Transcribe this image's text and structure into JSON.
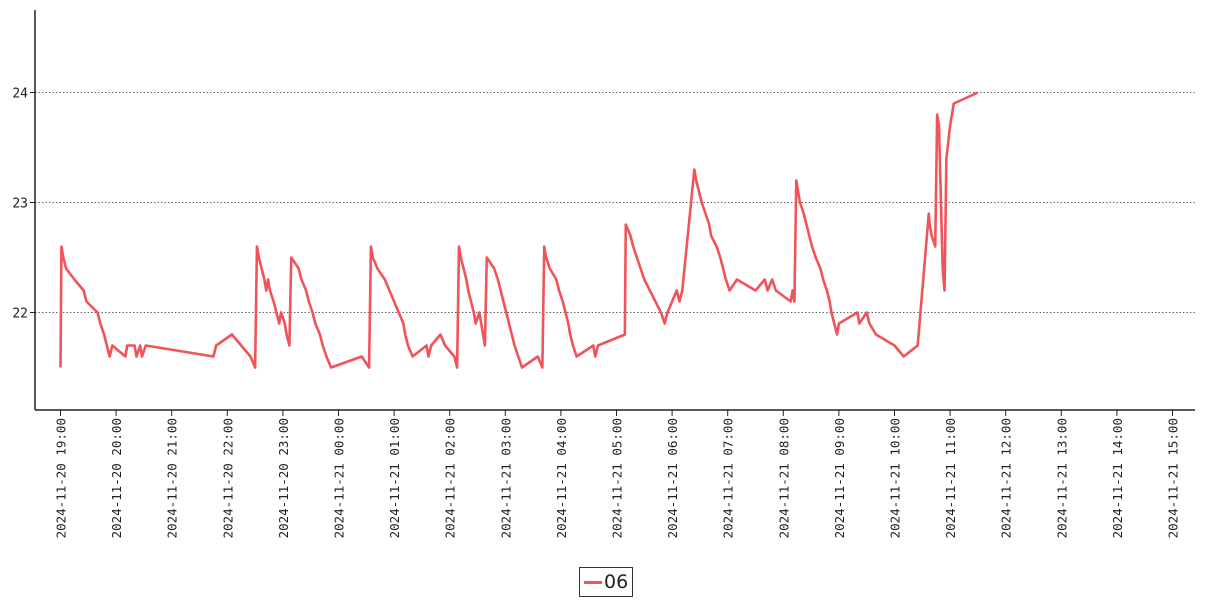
{
  "chart_data": {
    "type": "line",
    "title": "",
    "xlabel": "",
    "ylabel": "",
    "x_range": [
      "2024-11-20 18:55",
      "2024-11-21 15:20"
    ],
    "ylim": [
      21.1,
      24.75
    ],
    "y_ticks": [
      22,
      23,
      24
    ],
    "y_tick_labels": [
      "22",
      "23",
      "24"
    ],
    "x_ticks": [
      "2024-11-20 19:00",
      "2024-11-20 20:00",
      "2024-11-20 21:00",
      "2024-11-20 22:00",
      "2024-11-20 23:00",
      "2024-11-21 00:00",
      "2024-11-21 01:00",
      "2024-11-21 02:00",
      "2024-11-21 03:00",
      "2024-11-21 04:00",
      "2024-11-21 05:00",
      "2024-11-21 06:00",
      "2024-11-21 07:00",
      "2024-11-21 08:00",
      "2024-11-21 09:00",
      "2024-11-21 10:00",
      "2024-11-21 11:00",
      "2024-11-21 12:00",
      "2024-11-21 13:00",
      "2024-11-21 14:00",
      "2024-11-21 15:00"
    ],
    "x_tick_labels": [
      "2024-11-20 19:00",
      "2024-11-20 20:00",
      "2024-11-20 21:00",
      "2024-11-20 22:00",
      "2024-11-20 23:00",
      "2024-11-21 00:00",
      "2024-11-21 01:00",
      "2024-11-21 02:00",
      "2024-11-21 03:00",
      "2024-11-21 04:00",
      "2024-11-21 05:00",
      "2024-11-21 06:00",
      "2024-11-21 07:00",
      "2024-11-21 08:00",
      "2024-11-21 09:00",
      "2024-11-21 10:00",
      "2024-11-21 11:00",
      "2024-11-21 12:00",
      "2024-11-21 13:00",
      "2024-11-21 14:00",
      "2024-11-21 15:00"
    ],
    "grid": "horizontal dotted",
    "legend_position": "bottom-center",
    "series": [
      {
        "name": "06",
        "color": "#f0545a",
        "points": [
          [
            "2024-11-20 19:00",
            21.5
          ],
          [
            "2024-11-20 19:01",
            22.6
          ],
          [
            "2024-11-20 19:03",
            22.5
          ],
          [
            "2024-11-20 19:06",
            22.4
          ],
          [
            "2024-11-20 19:15",
            22.3
          ],
          [
            "2024-11-20 19:25",
            22.2
          ],
          [
            "2024-11-20 19:28",
            22.1
          ],
          [
            "2024-11-20 19:40",
            22.0
          ],
          [
            "2024-11-20 19:43",
            21.9
          ],
          [
            "2024-11-20 19:47",
            21.8
          ],
          [
            "2024-11-20 19:50",
            21.7
          ],
          [
            "2024-11-20 19:53",
            21.6
          ],
          [
            "2024-11-20 19:56",
            21.7
          ],
          [
            "2024-11-20 20:10",
            21.6
          ],
          [
            "2024-11-20 20:12",
            21.7
          ],
          [
            "2024-11-20 20:20",
            21.7
          ],
          [
            "2024-11-20 20:22",
            21.6
          ],
          [
            "2024-11-20 20:26",
            21.7
          ],
          [
            "2024-11-20 20:28",
            21.6
          ],
          [
            "2024-11-20 20:32",
            21.7
          ],
          [
            "2024-11-20 21:45",
            21.6
          ],
          [
            "2024-11-20 21:48",
            21.7
          ],
          [
            "2024-11-20 22:05",
            21.8
          ],
          [
            "2024-11-20 22:15",
            21.7
          ],
          [
            "2024-11-20 22:25",
            21.6
          ],
          [
            "2024-11-20 22:30",
            21.5
          ],
          [
            "2024-11-20 22:32",
            22.6
          ],
          [
            "2024-11-20 22:34",
            22.5
          ],
          [
            "2024-11-20 22:37",
            22.4
          ],
          [
            "2024-11-20 22:40",
            22.3
          ],
          [
            "2024-11-20 22:42",
            22.2
          ],
          [
            "2024-11-20 22:44",
            22.3
          ],
          [
            "2024-11-20 22:46",
            22.2
          ],
          [
            "2024-11-20 22:50",
            22.1
          ],
          [
            "2024-11-20 22:53",
            22.0
          ],
          [
            "2024-11-20 22:56",
            21.9
          ],
          [
            "2024-11-20 22:58",
            22.0
          ],
          [
            "2024-11-20 23:02",
            21.9
          ],
          [
            "2024-11-20 23:04",
            21.8
          ],
          [
            "2024-11-20 23:07",
            21.7
          ],
          [
            "2024-11-20 23:09",
            22.5
          ],
          [
            "2024-11-20 23:17",
            22.4
          ],
          [
            "2024-11-20 23:20",
            22.3
          ],
          [
            "2024-11-20 23:25",
            22.2
          ],
          [
            "2024-11-20 23:28",
            22.1
          ],
          [
            "2024-11-20 23:32",
            22.0
          ],
          [
            "2024-11-20 23:35",
            21.9
          ],
          [
            "2024-11-20 23:40",
            21.8
          ],
          [
            "2024-11-20 23:43",
            21.7
          ],
          [
            "2024-11-20 23:47",
            21.6
          ],
          [
            "2024-11-20 23:52",
            21.5
          ],
          [
            "2024-11-21 00:25",
            21.6
          ],
          [
            "2024-11-21 00:33",
            21.5
          ],
          [
            "2024-11-21 00:35",
            22.6
          ],
          [
            "2024-11-21 00:37",
            22.5
          ],
          [
            "2024-11-21 00:42",
            22.4
          ],
          [
            "2024-11-21 00:50",
            22.3
          ],
          [
            "2024-11-21 00:55",
            22.2
          ],
          [
            "2024-11-21 01:00",
            22.1
          ],
          [
            "2024-11-21 01:05",
            22.0
          ],
          [
            "2024-11-21 01:10",
            21.9
          ],
          [
            "2024-11-21 01:12",
            21.8
          ],
          [
            "2024-11-21 01:15",
            21.7
          ],
          [
            "2024-11-21 01:20",
            21.6
          ],
          [
            "2024-11-21 01:35",
            21.7
          ],
          [
            "2024-11-21 01:37",
            21.6
          ],
          [
            "2024-11-21 01:40",
            21.7
          ],
          [
            "2024-11-21 01:50",
            21.8
          ],
          [
            "2024-11-21 01:55",
            21.7
          ],
          [
            "2024-11-21 02:05",
            21.6
          ],
          [
            "2024-11-21 02:08",
            21.5
          ],
          [
            "2024-11-21 02:10",
            22.6
          ],
          [
            "2024-11-21 02:12",
            22.5
          ],
          [
            "2024-11-21 02:15",
            22.4
          ],
          [
            "2024-11-21 02:18",
            22.3
          ],
          [
            "2024-11-21 02:20",
            22.2
          ],
          [
            "2024-11-21 02:23",
            22.1
          ],
          [
            "2024-11-21 02:26",
            22.0
          ],
          [
            "2024-11-21 02:28",
            21.9
          ],
          [
            "2024-11-21 02:32",
            22.0
          ],
          [
            "2024-11-21 02:34",
            21.9
          ],
          [
            "2024-11-21 02:36",
            21.8
          ],
          [
            "2024-11-21 02:38",
            21.7
          ],
          [
            "2024-11-21 02:40",
            22.5
          ],
          [
            "2024-11-21 02:48",
            22.4
          ],
          [
            "2024-11-21 02:52",
            22.3
          ],
          [
            "2024-11-21 02:55",
            22.2
          ],
          [
            "2024-11-21 02:58",
            22.1
          ],
          [
            "2024-11-21 03:01",
            22.0
          ],
          [
            "2024-11-21 03:04",
            21.9
          ],
          [
            "2024-11-21 03:07",
            21.8
          ],
          [
            "2024-11-21 03:10",
            21.7
          ],
          [
            "2024-11-21 03:14",
            21.6
          ],
          [
            "2024-11-21 03:18",
            21.5
          ],
          [
            "2024-11-21 03:35",
            21.6
          ],
          [
            "2024-11-21 03:40",
            21.5
          ],
          [
            "2024-11-21 03:42",
            22.6
          ],
          [
            "2024-11-21 03:44",
            22.5
          ],
          [
            "2024-11-21 03:48",
            22.4
          ],
          [
            "2024-11-21 03:55",
            22.3
          ],
          [
            "2024-11-21 03:58",
            22.2
          ],
          [
            "2024-11-21 04:02",
            22.1
          ],
          [
            "2024-11-21 04:05",
            22.0
          ],
          [
            "2024-11-21 04:08",
            21.9
          ],
          [
            "2024-11-21 04:10",
            21.8
          ],
          [
            "2024-11-21 04:13",
            21.7
          ],
          [
            "2024-11-21 04:17",
            21.6
          ],
          [
            "2024-11-21 04:35",
            21.7
          ],
          [
            "2024-11-21 04:37",
            21.6
          ],
          [
            "2024-11-21 04:40",
            21.7
          ],
          [
            "2024-11-21 05:09",
            21.8
          ],
          [
            "2024-11-21 05:10",
            22.8
          ],
          [
            "2024-11-21 05:15",
            22.7
          ],
          [
            "2024-11-21 05:18",
            22.6
          ],
          [
            "2024-11-21 05:22",
            22.5
          ],
          [
            "2024-11-21 05:26",
            22.4
          ],
          [
            "2024-11-21 05:30",
            22.3
          ],
          [
            "2024-11-21 05:36",
            22.2
          ],
          [
            "2024-11-21 05:42",
            22.1
          ],
          [
            "2024-11-21 05:48",
            22.0
          ],
          [
            "2024-11-21 05:52",
            21.9
          ],
          [
            "2024-11-21 05:55",
            22.0
          ],
          [
            "2024-11-21 06:00",
            22.1
          ],
          [
            "2024-11-21 06:05",
            22.2
          ],
          [
            "2024-11-21 06:08",
            22.1
          ],
          [
            "2024-11-21 06:11",
            22.2
          ],
          [
            "2024-11-21 06:24",
            23.3
          ],
          [
            "2024-11-21 06:26",
            23.2
          ],
          [
            "2024-11-21 06:29",
            23.1
          ],
          [
            "2024-11-21 06:32",
            23.0
          ],
          [
            "2024-11-21 06:36",
            22.9
          ],
          [
            "2024-11-21 06:40",
            22.8
          ],
          [
            "2024-11-21 06:42",
            22.7
          ],
          [
            "2024-11-21 06:48",
            22.6
          ],
          [
            "2024-11-21 06:52",
            22.5
          ],
          [
            "2024-11-21 06:55",
            22.4
          ],
          [
            "2024-11-21 06:58",
            22.3
          ],
          [
            "2024-11-21 07:02",
            22.2
          ],
          [
            "2024-11-21 07:10",
            22.3
          ],
          [
            "2024-11-21 07:30",
            22.2
          ],
          [
            "2024-11-21 07:40",
            22.3
          ],
          [
            "2024-11-21 07:43",
            22.2
          ],
          [
            "2024-11-21 07:48",
            22.3
          ],
          [
            "2024-11-21 07:52",
            22.2
          ],
          [
            "2024-11-21 08:08",
            22.1
          ],
          [
            "2024-11-21 08:10",
            22.2
          ],
          [
            "2024-11-21 08:12",
            22.1
          ],
          [
            "2024-11-21 08:14",
            23.2
          ],
          [
            "2024-11-21 08:16",
            23.1
          ],
          [
            "2024-11-21 08:18",
            23.0
          ],
          [
            "2024-11-21 08:22",
            22.9
          ],
          [
            "2024-11-21 08:25",
            22.8
          ],
          [
            "2024-11-21 08:28",
            22.7
          ],
          [
            "2024-11-21 08:31",
            22.6
          ],
          [
            "2024-11-21 08:35",
            22.5
          ],
          [
            "2024-11-21 08:40",
            22.4
          ],
          [
            "2024-11-21 08:43",
            22.3
          ],
          [
            "2024-11-21 08:47",
            22.2
          ],
          [
            "2024-11-21 08:50",
            22.1
          ],
          [
            "2024-11-21 08:52",
            22.0
          ],
          [
            "2024-11-21 08:55",
            21.9
          ],
          [
            "2024-11-21 08:58",
            21.8
          ],
          [
            "2024-11-21 09:00",
            21.9
          ],
          [
            "2024-11-21 09:20",
            22.0
          ],
          [
            "2024-11-21 09:22",
            21.9
          ],
          [
            "2024-11-21 09:30",
            22.0
          ],
          [
            "2024-11-21 09:33",
            21.9
          ],
          [
            "2024-11-21 09:40",
            21.8
          ],
          [
            "2024-11-21 10:00",
            21.7
          ],
          [
            "2024-11-21 10:10",
            21.6
          ],
          [
            "2024-11-21 10:25",
            21.7
          ],
          [
            "2024-11-21 10:37",
            22.9
          ],
          [
            "2024-11-21 10:38",
            22.8
          ],
          [
            "2024-11-21 10:40",
            22.7
          ],
          [
            "2024-11-21 10:44",
            22.6
          ],
          [
            "2024-11-21 10:46",
            23.8
          ],
          [
            "2024-11-21 10:48",
            23.7
          ],
          [
            "2024-11-21 10:52",
            22.4
          ],
          [
            "2024-11-21 10:54",
            22.2
          ],
          [
            "2024-11-21 10:56",
            23.4
          ],
          [
            "2024-11-21 11:00",
            23.7
          ],
          [
            "2024-11-21 11:04",
            23.9
          ],
          [
            "2024-11-21 11:30",
            24.0
          ]
        ]
      }
    ]
  }
}
